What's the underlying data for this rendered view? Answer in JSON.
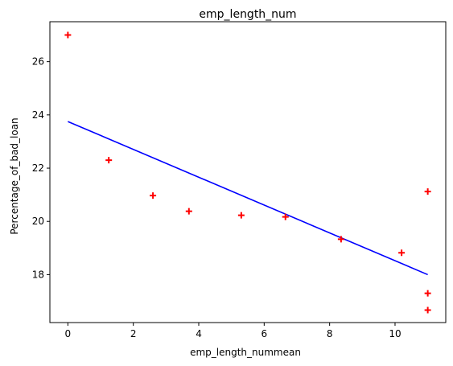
{
  "chart_data": {
    "type": "scatter",
    "title": "emp_length_num",
    "xlabel": "emp_length_nummean",
    "ylabel": "Percentage_of_bad_loan",
    "xlim": [
      -0.55,
      11.55
    ],
    "ylim": [
      16.2,
      27.5
    ],
    "x_ticks": [
      0,
      2,
      4,
      6,
      8,
      10
    ],
    "y_ticks": [
      18,
      20,
      22,
      24,
      26
    ],
    "grid": false,
    "marker_color": "#ff0000",
    "line_color": "#0000ff",
    "points": [
      {
        "x": 0.0,
        "y": 27.0
      },
      {
        "x": 1.25,
        "y": 22.3
      },
      {
        "x": 2.6,
        "y": 20.97
      },
      {
        "x": 3.7,
        "y": 20.38
      },
      {
        "x": 5.3,
        "y": 20.23
      },
      {
        "x": 6.65,
        "y": 20.17
      },
      {
        "x": 8.35,
        "y": 19.33
      },
      {
        "x": 10.2,
        "y": 18.82
      },
      {
        "x": 11.0,
        "y": 21.12
      },
      {
        "x": 11.0,
        "y": 17.3
      },
      {
        "x": 11.0,
        "y": 16.67
      }
    ],
    "fit_line": {
      "x": [
        0.0,
        11.0
      ],
      "y": [
        23.75,
        18.0
      ]
    }
  }
}
